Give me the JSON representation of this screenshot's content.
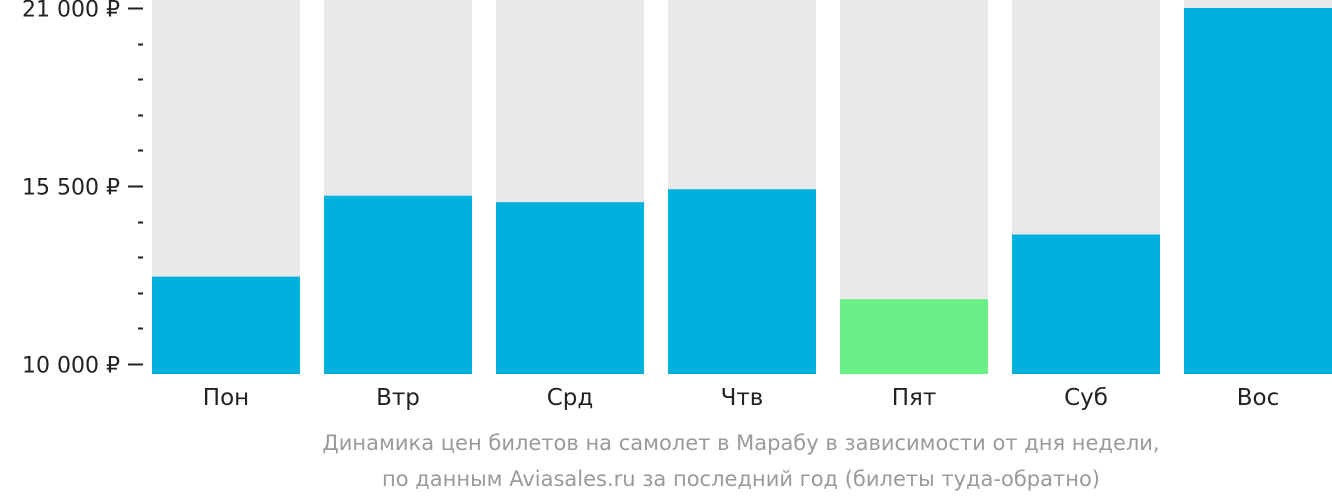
{
  "chart_data": {
    "type": "bar",
    "categories": [
      "Пон",
      "Втр",
      "Срд",
      "Чтв",
      "Пят",
      "Суб",
      "Вос"
    ],
    "values": [
      12700,
      15200,
      15000,
      15400,
      12000,
      14000,
      21000
    ],
    "ylim": [
      10000,
      21000
    ],
    "yticks": [
      {
        "value": 21000,
        "label": "21 000 ₽"
      },
      {
        "value": 15500,
        "label": "15 500 ₽"
      },
      {
        "value": 10000,
        "label": "10 000 ₽"
      }
    ],
    "minor_tick_step": 1100,
    "highlight_index": 4,
    "grid": false,
    "colors": {
      "bar": "#00b1dd",
      "highlight": "#6bef87",
      "track": "#e8e8e8",
      "axis": "#222222"
    },
    "caption_lines": [
      "Динамика цен билетов на самолет в Марабу в зависимости от дня недели,",
      "по данным Aviasales.ru за последний год (билеты туда-обратно)"
    ]
  }
}
